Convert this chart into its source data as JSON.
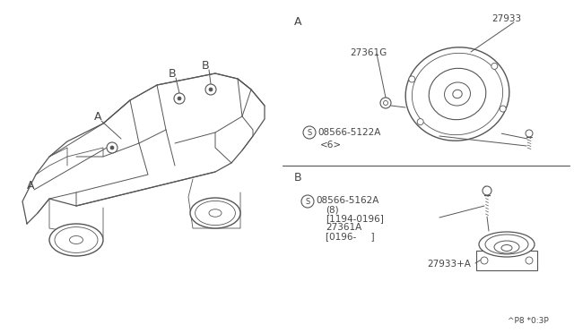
{
  "bg_color": "#ffffff",
  "line_color": "#555555",
  "text_color": "#444444",
  "part_A_speaker_label": "27933",
  "part_A_grille_label": "27361G",
  "part_A_screw_label": "08566-5122A",
  "part_A_screw_sub": "<6>",
  "part_B_screw_label": "08566-5162A",
  "part_B_screw_sub1": "(8)",
  "part_B_date1": "[1194-0196]",
  "part_B_grille_label": "27361A",
  "part_B_date2": "[0196-     ]",
  "part_B_speaker_label": "27933+A",
  "footnote": "^P8 *0:3P",
  "section_A": "A",
  "section_B": "B"
}
